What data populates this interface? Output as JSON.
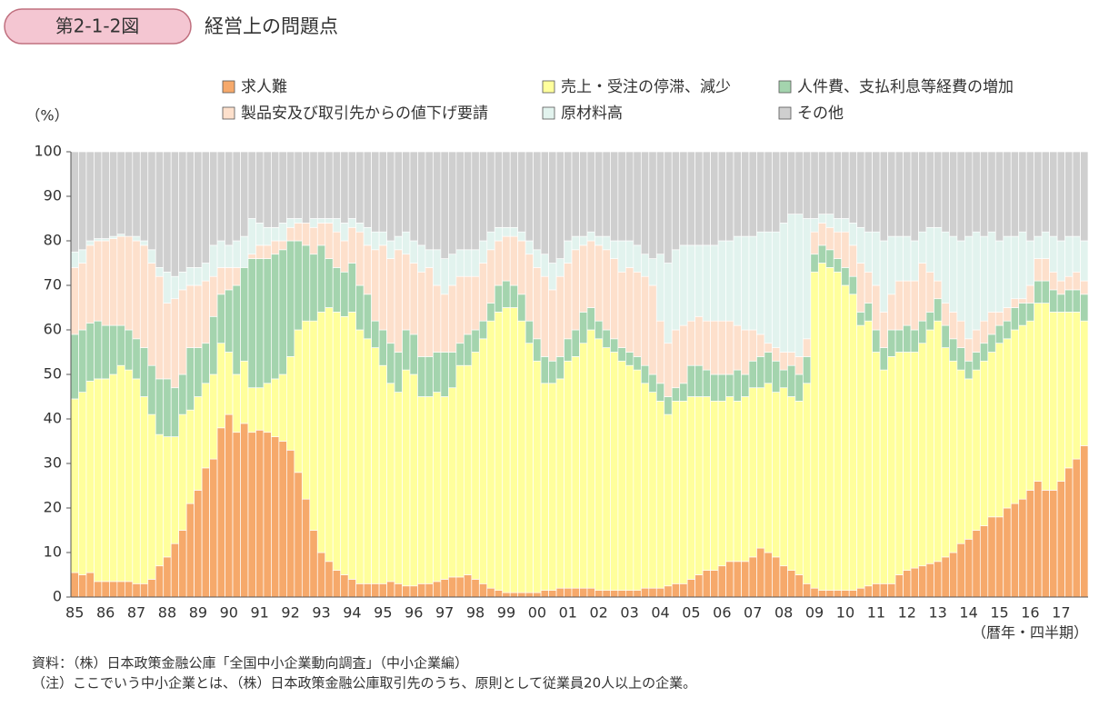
{
  "header": {
    "figure": "第2-1-2図",
    "title": "経営上の問題点"
  },
  "chart_data": {
    "type": "stacked_bar",
    "y_unit": "（%）",
    "x_unit": "（暦年・四半期）",
    "categories": [
      "85",
      null,
      null,
      null,
      "86",
      null,
      null,
      null,
      "87",
      null,
      null,
      null,
      "88",
      null,
      null,
      null,
      "89",
      null,
      null,
      null,
      "90",
      null,
      null,
      null,
      "91",
      null,
      null,
      null,
      "92",
      null,
      null,
      null,
      "93",
      null,
      null,
      null,
      "94",
      null,
      null,
      null,
      "95",
      null,
      null,
      null,
      "96",
      null,
      null,
      null,
      "97",
      null,
      null,
      null,
      "98",
      null,
      null,
      null,
      "99",
      null,
      null,
      null,
      "00",
      null,
      null,
      null,
      "01",
      null,
      null,
      null,
      "02",
      null,
      null,
      null,
      "03",
      null,
      null,
      null,
      "04",
      null,
      null,
      null,
      "05",
      null,
      null,
      null,
      "06",
      null,
      null,
      null,
      "07",
      null,
      null,
      null,
      "08",
      null,
      null,
      null,
      "09",
      null,
      null,
      null,
      "10",
      null,
      null,
      null,
      "11",
      null,
      null,
      null,
      "12",
      null,
      null,
      null,
      "13",
      null,
      null,
      null,
      "14",
      null,
      null,
      null,
      "15",
      null,
      null,
      null,
      "16",
      null,
      null,
      null,
      "17",
      null,
      null,
      null
    ],
    "series": [
      {
        "name": "求人難",
        "color": "#f6a96b",
        "values": [
          5.5,
          5,
          5.5,
          3.5,
          3.5,
          3.5,
          3.5,
          3.5,
          3,
          3,
          4,
          7,
          9,
          12,
          15,
          21,
          24,
          29,
          31,
          38,
          41,
          37,
          39,
          37,
          37.5,
          37,
          36,
          35,
          33,
          28,
          22,
          15,
          10,
          8,
          6,
          5,
          4,
          3,
          3,
          3,
          3,
          3.5,
          3,
          2.5,
          2.5,
          3,
          3,
          3.5,
          4,
          4.5,
          4.5,
          5,
          4,
          3,
          2,
          1.5,
          1,
          1,
          1,
          1,
          1,
          1.5,
          1.5,
          2,
          2,
          2,
          2,
          2,
          1.5,
          1.5,
          1.5,
          1.5,
          1.5,
          1.5,
          2,
          2,
          2,
          2.5,
          3,
          3,
          4,
          5,
          6,
          6,
          7,
          8,
          8,
          8,
          9,
          11,
          10,
          9,
          7,
          6,
          5,
          3,
          2,
          1.5,
          1.5,
          1.5,
          1.5,
          1.5,
          2,
          2.5,
          3,
          3,
          3,
          5,
          6,
          6.5,
          7,
          7.5,
          8,
          9,
          10,
          12,
          13,
          15,
          16,
          18,
          18,
          20,
          21,
          22,
          24,
          26,
          24,
          24,
          26,
          29,
          31,
          34
        ]
      },
      {
        "name": "売上・受注の停滞、減少",
        "color": "#ffff9c",
        "values": [
          39,
          41,
          43,
          45.5,
          45.5,
          46.5,
          48.5,
          47.5,
          46,
          42,
          37,
          29.5,
          27,
          24,
          26,
          21,
          21,
          19,
          19,
          19,
          14,
          13,
          14,
          10,
          9.5,
          11,
          13,
          15,
          21,
          32,
          40,
          47,
          54,
          57,
          58,
          58,
          60,
          57,
          55,
          53,
          49,
          44.5,
          43,
          48.5,
          47.5,
          42,
          42,
          42.5,
          41,
          42.5,
          47.5,
          47,
          51,
          55,
          60,
          62.5,
          64,
          64,
          61,
          56,
          52,
          46.5,
          46.5,
          47,
          51,
          52,
          55,
          58,
          56.5,
          54.5,
          53.5,
          51.5,
          50.5,
          49.5,
          46,
          44,
          42,
          38.5,
          41,
          41,
          41,
          40,
          39,
          38,
          37,
          37,
          36,
          37,
          38,
          36,
          38,
          37,
          40,
          39,
          39,
          45,
          71,
          73.5,
          72.5,
          71.5,
          68.5,
          66.5,
          59,
          59.5,
          52,
          48,
          51,
          50,
          49,
          48.5,
          50,
          52.5,
          54,
          47,
          43,
          39,
          36,
          36,
          37,
          37,
          39,
          38,
          39,
          39,
          38,
          40,
          42,
          40,
          38,
          35,
          33,
          28
        ]
      },
      {
        "name": "人件費、支払利息等経費の増加",
        "color": "#a4d4ae",
        "values": [
          14.5,
          14,
          13,
          13,
          12,
          11,
          9,
          9,
          9,
          11,
          11,
          12.5,
          13,
          11,
          9,
          14,
          11,
          9,
          13,
          11,
          14,
          20,
          21,
          29,
          29,
          28,
          28,
          28,
          26,
          20,
          17,
          15,
          15,
          11,
          10,
          10,
          11,
          10,
          10,
          6,
          8,
          9,
          9,
          9,
          9,
          9,
          9,
          9,
          10,
          8,
          5,
          7,
          5,
          4,
          4,
          6,
          6,
          5,
          6,
          5,
          5,
          6,
          5,
          5,
          5,
          6,
          7,
          5,
          4,
          4,
          3,
          3,
          3,
          3,
          4,
          4,
          4,
          4,
          3,
          4,
          7,
          7,
          6,
          6,
          6,
          5,
          7,
          5,
          6,
          7,
          7,
          7,
          4,
          7,
          6,
          6,
          4,
          4,
          4,
          3,
          4,
          4,
          3,
          4,
          5,
          5,
          6,
          5,
          6,
          5,
          5,
          4,
          5,
          5,
          5,
          5,
          4,
          4,
          4,
          4,
          4,
          4,
          5,
          5,
          4,
          5,
          5,
          5,
          4,
          5,
          5,
          6
        ]
      },
      {
        "name": "製品安及び取引先からの値下げ要請",
        "color": "#fde0cc",
        "values": [
          15,
          15,
          17.5,
          18,
          19,
          19.5,
          20,
          21,
          22,
          23,
          23,
          23,
          17,
          20,
          19,
          14,
          14,
          14,
          9,
          6,
          5,
          4,
          0,
          1,
          3,
          3,
          3,
          2,
          3,
          4,
          5,
          6,
          5,
          8,
          8,
          7,
          8,
          12,
          11,
          16,
          19,
          19,
          23,
          17,
          16,
          19,
          20,
          15,
          13,
          15,
          15,
          13,
          12,
          13,
          12,
          10,
          10,
          11,
          12,
          15,
          16,
          18,
          16,
          18,
          17,
          18,
          15,
          15,
          17,
          18,
          18,
          17,
          19,
          19,
          20,
          20,
          14,
          12,
          13,
          13,
          10,
          11,
          11,
          12,
          12,
          12,
          10,
          10,
          7,
          5,
          2,
          3,
          4,
          3,
          4,
          4,
          5,
          5,
          5,
          6,
          8,
          7,
          11,
          7,
          10,
          8,
          8,
          11,
          10,
          11,
          13,
          9,
          4,
          5,
          6,
          6,
          5,
          5,
          5,
          5,
          3,
          3,
          2,
          1,
          4,
          5,
          5,
          4,
          3,
          3,
          4,
          3
        ]
      },
      {
        "name": "原材料高",
        "color": "#e2f3ee",
        "values": [
          3.5,
          3,
          1,
          0.5,
          0.5,
          0.5,
          0.5,
          0,
          1,
          1,
          3,
          2,
          7,
          5,
          4,
          4,
          4,
          4,
          7,
          6,
          5,
          6,
          7,
          8,
          5,
          4,
          3,
          4,
          2,
          1,
          0,
          2,
          1,
          1,
          3,
          4,
          2,
          2,
          4,
          4,
          3,
          4,
          3,
          5,
          5,
          6,
          4,
          8,
          8,
          7,
          6,
          6,
          6,
          5,
          4,
          3,
          2,
          2,
          2,
          3,
          4,
          5,
          6,
          4,
          5,
          3,
          2,
          2,
          2,
          3,
          4,
          7,
          6,
          6,
          5,
          6,
          15,
          18,
          18,
          18,
          17,
          16,
          17,
          17,
          18,
          18,
          20,
          21,
          21,
          23,
          25,
          26,
          29,
          31,
          32,
          27,
          3,
          2,
          3,
          3,
          3,
          5,
          8,
          9,
          12,
          16,
          13,
          10,
          10,
          9,
          7,
          10,
          12,
          16,
          17,
          18,
          23,
          22,
          19,
          18,
          16,
          16,
          14,
          15,
          10,
          5,
          6,
          8,
          9,
          9,
          8,
          9
        ]
      },
      {
        "name": "その他",
        "color": "#cfcfcf",
        "values": [
          22.5,
          22,
          20,
          19.5,
          19.5,
          19,
          18.5,
          19,
          19,
          20,
          22,
          26,
          27,
          28,
          27,
          26,
          26,
          25,
          21,
          20,
          21,
          20,
          19,
          15,
          16,
          17,
          17,
          16,
          15,
          15,
          16,
          15,
          15,
          15,
          15,
          16,
          15,
          16,
          17,
          18,
          18,
          20,
          19,
          18,
          20,
          21,
          22,
          22,
          24,
          23,
          22,
          22,
          22,
          20,
          18,
          17,
          17,
          17,
          18,
          20,
          22,
          23,
          25,
          24,
          20,
          19,
          19,
          18,
          19,
          19,
          20,
          20,
          20,
          21,
          23,
          24,
          23,
          25,
          22,
          21,
          21,
          21,
          21,
          21,
          20,
          20,
          19,
          19,
          19,
          18,
          18,
          18,
          16,
          14,
          14,
          15,
          15,
          14,
          14,
          15,
          15,
          16,
          17,
          18,
          18,
          20,
          19,
          19,
          19,
          20,
          18,
          17,
          17,
          18,
          19,
          20,
          19,
          18,
          19,
          18,
          20,
          19,
          19,
          18,
          20,
          19,
          18,
          19,
          20,
          19,
          19,
          20
        ]
      }
    ],
    "ylim": [
      0,
      100
    ],
    "yticks": [
      0,
      10,
      20,
      30,
      40,
      50,
      60,
      70,
      80,
      90,
      100
    ],
    "grid": false
  },
  "notes": [
    "資料：（株）日本政策金融公庫「全国中小企業動向調査」（中小企業編）",
    "（注）ここでいう中小企業とは、（株）日本政策金融公庫取引先のうち、原則として従業員20人以上の企業。"
  ]
}
